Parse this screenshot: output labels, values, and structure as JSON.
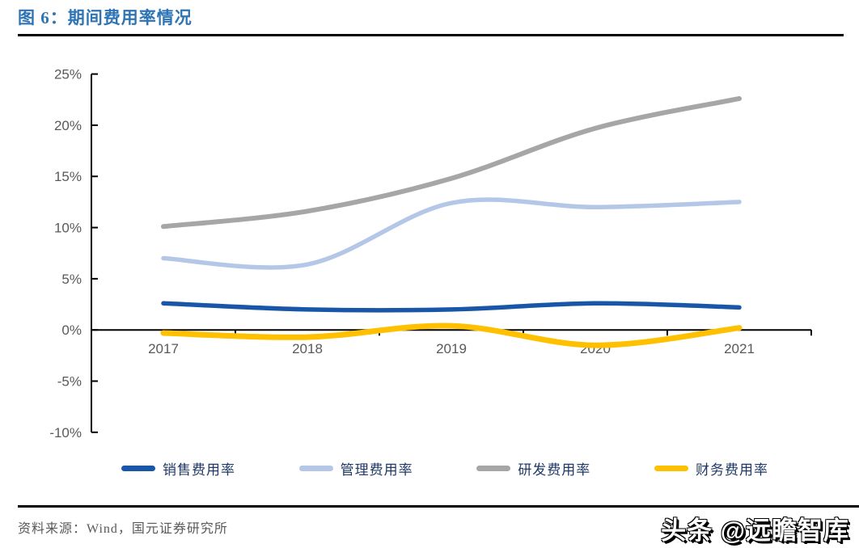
{
  "figure": {
    "title": "图 6：期间费用率情况"
  },
  "source": {
    "label": "资料来源：Wind，国元证券研究所"
  },
  "watermark": {
    "text": "头条 @远瞻智库"
  },
  "colors": {
    "title_blue": "#2E74B5",
    "axis_line": "#000000",
    "tick_text": "#595959",
    "legend_text": "#1F3864",
    "series_sales": "#1A56A8",
    "series_management": "#B4C7E7",
    "series_rnd": "#A6A6A6",
    "series_finance": "#FFC000"
  },
  "chart_data": {
    "type": "line",
    "smooth": true,
    "grid": false,
    "legend_position": "bottom",
    "title": "期间费用率情况",
    "xlabel": "",
    "ylabel": "",
    "categories": [
      "2017",
      "2018",
      "2019",
      "2020",
      "2021"
    ],
    "series": [
      {
        "name": "销售费用率",
        "color": "#1A56A8",
        "values": [
          2.6,
          2.0,
          2.0,
          2.6,
          2.2
        ]
      },
      {
        "name": "管理费用率",
        "color": "#B4C7E7",
        "values": [
          7.0,
          6.4,
          12.4,
          12.0,
          12.5
        ]
      },
      {
        "name": "研发费用率",
        "color": "#A6A6A6",
        "values": [
          10.1,
          11.6,
          14.8,
          19.7,
          22.6
        ]
      },
      {
        "name": "财务费用率",
        "color": "#FFC000",
        "values": [
          -0.3,
          -0.7,
          0.4,
          -1.5,
          0.2
        ]
      }
    ],
    "ylim": [
      -10,
      25
    ],
    "ytick_step": 5,
    "ytick_labels": [
      "25%",
      "20%",
      "15%",
      "10%",
      "5%",
      "0%",
      "-5%",
      "-10%"
    ]
  }
}
